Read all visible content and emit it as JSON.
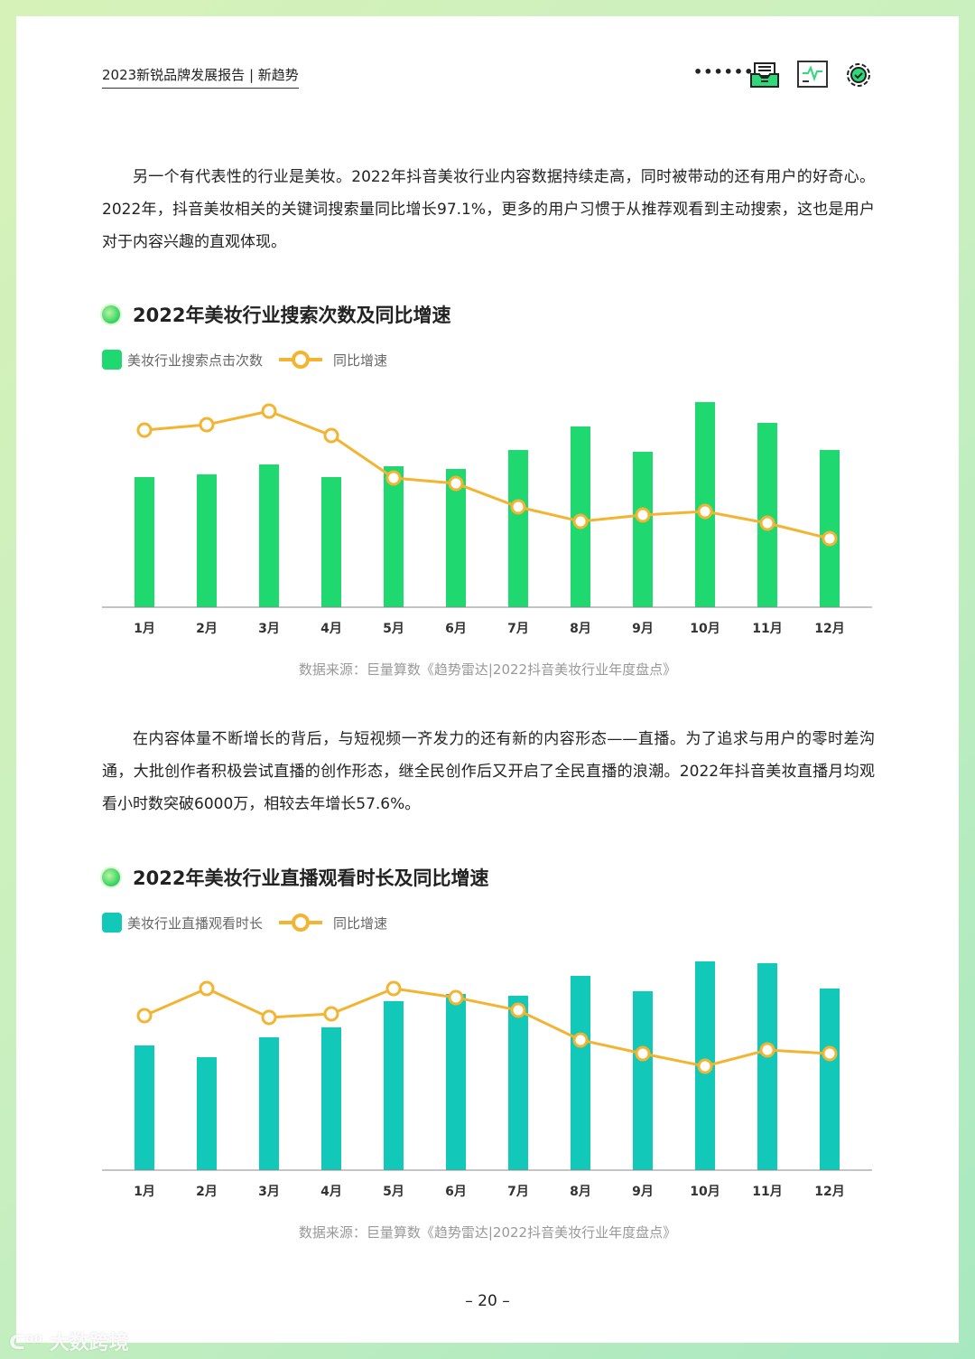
{
  "header": {
    "title": "2023新锐品牌发展报告 | 新趋势",
    "icons": [
      "more-dots-icon",
      "inbox-tray-icon",
      "monitor-chart-icon",
      "gear-check-icon"
    ]
  },
  "paragraphs": [
    "另一个有代表性的行业是美妆。2022年抖音美妆行业内容数据持续走高，同时被带动的还有用户的好奇心。2022年，抖音美妆相关的关键词搜索量同比增长97.1%，更多的用户习惯于从推荐观看到主动搜索，这也是用户对于内容兴趣的直观体现。",
    "在内容体量不断增长的背后，与短视频一齐发力的还有新的内容形态——直播。为了追求与用户的零时差沟通，大批创作者积极尝试直播的创作形态，继全民创作后又开启了全民直播的浪潮。2022年抖音美妆直播月均观看小时数突破6000万，相较去年增长57.6%。"
  ],
  "colors": {
    "bar1": "#1fd870",
    "bar2": "#12c8b8",
    "line": "#f2b431",
    "accent": "#2fd060"
  },
  "chart_data": [
    {
      "type": "bar+line",
      "title": "2022年美妆行业搜索次数及同比增速",
      "categories": [
        "1月",
        "2月",
        "3月",
        "4月",
        "5月",
        "6月",
        "7月",
        "8月",
        "9月",
        "10月",
        "11月",
        "12月"
      ],
      "series": [
        {
          "name": "美妆行业搜索点击次数",
          "type": "bar",
          "values": [
            144,
            147,
            158,
            144,
            156,
            153,
            174,
            200,
            172,
            227,
            204,
            174
          ]
        },
        {
          "name": "同比增速",
          "type": "line",
          "values": [
            196,
            202,
            217,
            190,
            143,
            137,
            111,
            95,
            102,
            106,
            93,
            76
          ]
        }
      ],
      "note": "数值为相对估计，原图未标注纵轴刻度",
      "source": "数据来源：巨量算数《趋势雷达|2022抖音美妆行业年度盘点》",
      "grid": false,
      "legend": "top-left"
    },
    {
      "type": "bar+line",
      "title": "2022年美妆行业直播观看时长及同比增速",
      "categories": [
        "1月",
        "2月",
        "3月",
        "4月",
        "5月",
        "6月",
        "7月",
        "8月",
        "9月",
        "10月",
        "11月",
        "12月"
      ],
      "series": [
        {
          "name": "美妆行业直播观看时长",
          "type": "bar",
          "values": [
            138,
            125,
            147,
            158,
            187,
            195,
            193,
            215,
            198,
            231,
            229,
            201
          ]
        },
        {
          "name": "同比增速",
          "type": "line",
          "values": [
            171,
            201,
            169,
            173,
            201,
            191,
            177,
            144,
            129,
            115,
            133,
            129
          ]
        }
      ],
      "source": "数据来源：巨量算数《趋势雷达|2022抖音美妆行业年度盘点》",
      "grid": false,
      "legend": "top-left"
    }
  ],
  "page_number": "– 20 –",
  "watermark": "大数跨境"
}
